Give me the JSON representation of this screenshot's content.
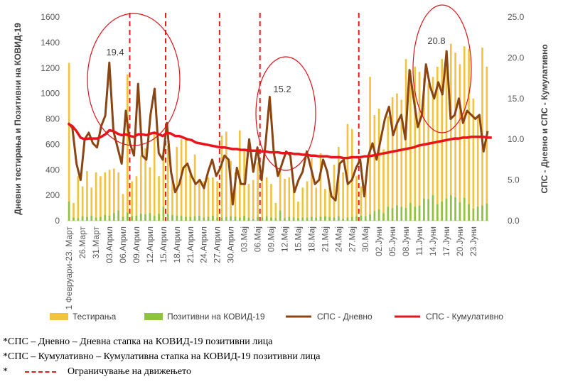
{
  "chart_data": {
    "type": "bar+line",
    "ylabel_left": "Дневни тестирања и Позитивни на КОВИД-19",
    "ylabel_right": "СПС - Дневно и СПС - Кумулативно",
    "ylim_left": [
      0,
      1600
    ],
    "ylim_right": [
      0,
      25
    ],
    "yticks_left": [
      "0",
      "200",
      "400",
      "600",
      "800",
      "1000",
      "1200",
      "1400",
      "1600"
    ],
    "yticks_right": [
      "0.0",
      "5.0",
      "10.0",
      "15.0",
      "20.0",
      "25.0"
    ],
    "x_tick_labels": [
      "1 Февруари-23. Март",
      "26.Март",
      "31.Март",
      "03.Април",
      "06.Април",
      "09.Април",
      "12.Април",
      "15.Април",
      "18.Април",
      "21.Април",
      "24.Април",
      "27.Април",
      "30.Април",
      "03.Мај",
      "06.Мај",
      "09.Мај",
      "12.Мај",
      "15.Мај",
      "18.Мај",
      "21.Мај",
      "24.Мај",
      "27.Мај",
      "30.Мај",
      "02.Јуни",
      "05.Јуни",
      "08.Јуни",
      "11.Јуни",
      "14.Јуни",
      "17.Јуни",
      "20.Јуни",
      "23.Јуни"
    ],
    "x_tick_positions": [
      0,
      3,
      6,
      9,
      12,
      15,
      18,
      21,
      24,
      27,
      30,
      33,
      36,
      39,
      42,
      45,
      48,
      51,
      54,
      57,
      60,
      63,
      66,
      69,
      72,
      75,
      78,
      81,
      84,
      87,
      90
    ],
    "series": [
      {
        "name": "Тестирања",
        "type": "bar",
        "color": "#f2c341",
        "values": [
          1240,
          140,
          350,
          270,
          390,
          260,
          380,
          350,
          380,
          400,
          410,
          380,
          210,
          1150,
          310,
          350,
          510,
          570,
          420,
          700,
          350,
          560,
          590,
          320,
          580,
          640,
          650,
          400,
          520,
          330,
          310,
          340,
          340,
          310,
          670,
          700,
          470,
          380,
          710,
          560,
          290,
          320,
          460,
          360,
          340,
          290,
          140,
          390,
          330,
          340,
          290,
          150,
          260,
          310,
          490,
          260,
          530,
          250,
          260,
          440,
          580,
          380,
          760,
          720,
          350,
          270,
          260,
          1130,
          830,
          880,
          560,
          820,
          970,
          1000,
          950,
          1270,
          1180,
          1210,
          1170,
          1120,
          1080,
          1130,
          1210,
          1270,
          1340,
          1390,
          1320,
          1230,
          1370,
          1350,
          960,
          820,
          1360,
          1210
        ]
      },
      {
        "name": "Позитивни на КОВИД-19",
        "type": "bar",
        "color": "#8dc341",
        "values": [
          150,
          25,
          20,
          35,
          30,
          40,
          25,
          30,
          45,
          40,
          60,
          80,
          30,
          65,
          35,
          40,
          55,
          50,
          60,
          40,
          55,
          110,
          50,
          45,
          40,
          40,
          30,
          30,
          35,
          40,
          25,
          30,
          40,
          25,
          25,
          30,
          35,
          30,
          25,
          40,
          25,
          15,
          30,
          25,
          35,
          25,
          20,
          80,
          20,
          30,
          25,
          20,
          25,
          25,
          30,
          25,
          30,
          35,
          30,
          25,
          35,
          15,
          25,
          30,
          35,
          40,
          35,
          50,
          75,
          90,
          60,
          110,
          100,
          120,
          110,
          100,
          140,
          110,
          120,
          175,
          170,
          200,
          130,
          150,
          175,
          200,
          185,
          145,
          180,
          130,
          95,
          110,
          120,
          135
        ]
      },
      {
        "name": "СПС - Дневно",
        "type": "line",
        "color": "#8b4513",
        "values": [
          12.0,
          11.4,
          7.0,
          5.0,
          10.0,
          10.8,
          9.5,
          9.0,
          11.6,
          12.9,
          19.4,
          11.0,
          9.0,
          7.0,
          13.5,
          9.5,
          8.0,
          16.8,
          8.0,
          7.5,
          13.0,
          16.2,
          8.3,
          7.5,
          12.0,
          6.0,
          3.5,
          4.5,
          6.5,
          7.0,
          5.5,
          4.5,
          5.0,
          4.0,
          6.0,
          7.5,
          5.5,
          6.5,
          8.0,
          7.5,
          2.0,
          6.5,
          4.5,
          4.5,
          10.0,
          6.0,
          9.0,
          5.0,
          9.5,
          15.2,
          8.3,
          5.5,
          7.0,
          8.5,
          8.0,
          3.5,
          5.0,
          6.0,
          8.5,
          6.5,
          4.5,
          5.0,
          7.5,
          6.0,
          3.0,
          2.5,
          7.0,
          7.5,
          4.5,
          5.0,
          6.5,
          7.5,
          3.0,
          8.0,
          9.5,
          7.5,
          10.0,
          12.5,
          14.0,
          10.5,
          12.0,
          13.0,
          10.0,
          18.5,
          15.0,
          11.5,
          13.0,
          19.2,
          16.5,
          15.0,
          17.0,
          15.5,
          20.8,
          12.5,
          13.0,
          15.0,
          12.0,
          13.5,
          13.0,
          12.5,
          13.0,
          8.5,
          11.0
        ]
      },
      {
        "name": "СПС - Кумулативно",
        "type": "line",
        "color": "#e8141b",
        "values": [
          11.9,
          11.6,
          11.0,
          10.2,
          10.0,
          10.1,
          10.1,
          10.1,
          10.3,
          10.6,
          11.1,
          11.0,
          10.7,
          10.5,
          10.6,
          10.4,
          10.3,
          10.6,
          10.6,
          10.5,
          10.7,
          10.8,
          10.6,
          10.4,
          10.8,
          10.7,
          10.4,
          10.4,
          10.2,
          10.0,
          9.9,
          9.6,
          9.5,
          9.4,
          9.3,
          9.2,
          9.1,
          9.0,
          9.0,
          8.9,
          8.8,
          8.8,
          8.7,
          8.7,
          8.6,
          8.6,
          8.6,
          8.5,
          8.5,
          8.4,
          8.4,
          8.4,
          8.3,
          8.3,
          8.3,
          8.2,
          8.2,
          8.1,
          8.1,
          8.0,
          8.0,
          7.9,
          7.9,
          7.9,
          7.8,
          7.8,
          7.8,
          7.7,
          7.7,
          7.8,
          7.8,
          7.8,
          7.9,
          7.9,
          8.0,
          8.1,
          8.2,
          8.3,
          8.4,
          8.5,
          8.6,
          8.7,
          8.8,
          8.9,
          9.0,
          9.2,
          9.3,
          9.4,
          9.5,
          9.6,
          9.7,
          9.8,
          9.9,
          10.0,
          10.1,
          10.1,
          10.2,
          10.2,
          10.3,
          10.3,
          10.3,
          10.3,
          10.2,
          10.2
        ]
      }
    ],
    "annotations": [
      {
        "text": "19.4",
        "x_index": 10,
        "y": 19.4
      },
      {
        "text": "15.2",
        "x_index": 49,
        "y": 15.2
      },
      {
        "text": "20.8",
        "x_index": 92,
        "y": 20.8
      }
    ],
    "ellipses_around_x_index": [
      10,
      49,
      92
    ],
    "restriction_lines_x_index": [
      13,
      21,
      33,
      42,
      64
    ],
    "legend": {
      "position": "bottom",
      "items": [
        {
          "label": "Тестирања",
          "kind": "bar",
          "color": "#f2c341"
        },
        {
          "label": "Позитивни на КОВИД-19",
          "kind": "bar",
          "color": "#8dc341"
        },
        {
          "label": "СПС - Дневно",
          "kind": "line",
          "color": "#8b4513"
        },
        {
          "label": "СПС - Кумулативно",
          "kind": "line",
          "color": "#e8141b"
        }
      ]
    }
  },
  "footnotes": {
    "line1": "*СПС – Дневно – Дневна стапка на КОВИД-19 позитивни лица",
    "line2": "*СПС – Кумулативно – Кумулативна стапка на КОВИД-19 позитивни лица",
    "line3_star": "*",
    "line3_text": "Ограничување на движењето"
  }
}
